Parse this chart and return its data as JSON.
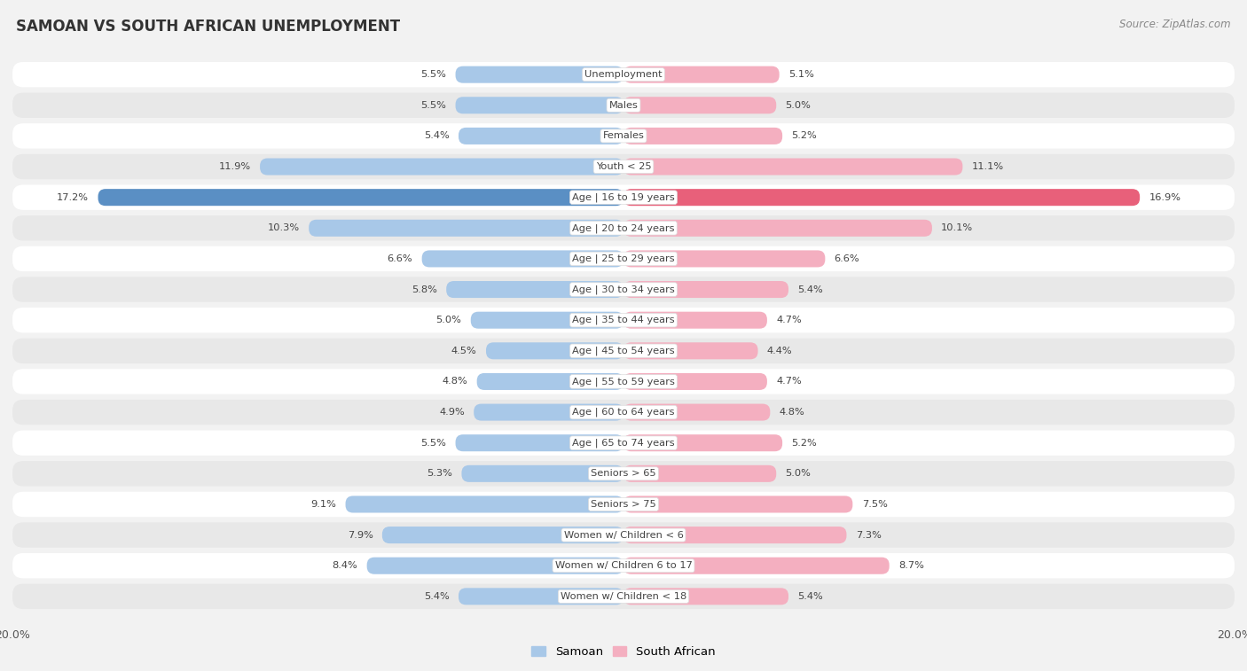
{
  "title": "SAMOAN VS SOUTH AFRICAN UNEMPLOYMENT",
  "source": "Source: ZipAtlas.com",
  "categories": [
    "Unemployment",
    "Males",
    "Females",
    "Youth < 25",
    "Age | 16 to 19 years",
    "Age | 20 to 24 years",
    "Age | 25 to 29 years",
    "Age | 30 to 34 years",
    "Age | 35 to 44 years",
    "Age | 45 to 54 years",
    "Age | 55 to 59 years",
    "Age | 60 to 64 years",
    "Age | 65 to 74 years",
    "Seniors > 65",
    "Seniors > 75",
    "Women w/ Children < 6",
    "Women w/ Children 6 to 17",
    "Women w/ Children < 18"
  ],
  "samoan": [
    5.5,
    5.5,
    5.4,
    11.9,
    17.2,
    10.3,
    6.6,
    5.8,
    5.0,
    4.5,
    4.8,
    4.9,
    5.5,
    5.3,
    9.1,
    7.9,
    8.4,
    5.4
  ],
  "south_african": [
    5.1,
    5.0,
    5.2,
    11.1,
    16.9,
    10.1,
    6.6,
    5.4,
    4.7,
    4.4,
    4.7,
    4.8,
    5.2,
    5.0,
    7.5,
    7.3,
    8.7,
    5.4
  ],
  "samoan_color": "#a8c8e8",
  "south_african_color": "#f4afc0",
  "highlight_samoan_color": "#5a8fc4",
  "highlight_south_african_color": "#e8607a",
  "xlim": 20.0,
  "background_color": "#f2f2f2",
  "row_bg_light": "#ffffff",
  "row_bg_dark": "#e8e8e8",
  "legend_samoan": "Samoan",
  "legend_south_african": "South African"
}
